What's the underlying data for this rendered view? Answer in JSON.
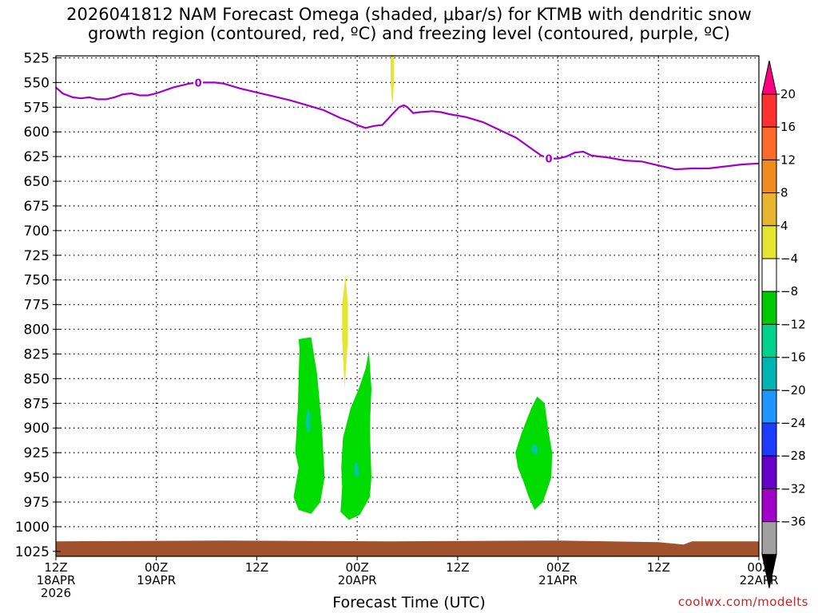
{
  "title": "2026041812 NAM Forecast Omega (shaded, μbar/s) for KTMB with dendritic snow\ngrowth region (contoured, red, ºC) and freezing level (contoured, purple, ºC)",
  "credit": "coolwx.com/modelts",
  "chart_data": {
    "type": "time-height cross section",
    "xlabel": "Forecast Time (UTC)",
    "ylim": [
      1030,
      523
    ],
    "y_ticks": [
      525,
      550,
      575,
      600,
      625,
      650,
      675,
      700,
      725,
      750,
      775,
      800,
      825,
      850,
      875,
      900,
      925,
      950,
      975,
      1000,
      1025
    ],
    "x_range_hours": [
      0,
      84
    ],
    "x_ticks": [
      {
        "hour": 0,
        "lines": [
          "12Z",
          "18APR",
          "2026"
        ]
      },
      {
        "hour": 12,
        "lines": [
          "00Z",
          "19APR"
        ]
      },
      {
        "hour": 24,
        "lines": [
          "12Z"
        ]
      },
      {
        "hour": 36,
        "lines": [
          "00Z",
          "20APR"
        ]
      },
      {
        "hour": 48,
        "lines": [
          "12Z"
        ]
      },
      {
        "hour": 60,
        "lines": [
          "00Z",
          "21APR"
        ]
      },
      {
        "hour": 72,
        "lines": [
          "12Z"
        ]
      },
      {
        "hour": 84,
        "lines": [
          "00Z",
          "22APR"
        ]
      }
    ],
    "grid": true,
    "colorbar": {
      "labels": [
        "20",
        "16",
        "12",
        "8",
        "4",
        "−4",
        "−8",
        "−12",
        "−16",
        "−20",
        "−24",
        "−28",
        "−32",
        "−36"
      ],
      "colors": [
        "#ff0080",
        "#ff3030",
        "#ff6a2a",
        "#ee8c1e",
        "#e6b42e",
        "#e6e632",
        "#ffffff",
        "#00c800",
        "#00d28c",
        "#00b4b4",
        "#1e96ff",
        "#1e3cff",
        "#6400c8",
        "#a000c8",
        "#a0a0a0",
        "#000000"
      ]
    },
    "freezing_level": {
      "color": "#a000c8",
      "label": "0",
      "points": [
        [
          0,
          555
        ],
        [
          0.8,
          561
        ],
        [
          2,
          565
        ],
        [
          3,
          566
        ],
        [
          4,
          565
        ],
        [
          5,
          567
        ],
        [
          6,
          567
        ],
        [
          7,
          565
        ],
        [
          8,
          562
        ],
        [
          9,
          561
        ],
        [
          10,
          563
        ],
        [
          11,
          563
        ],
        [
          12,
          561
        ],
        [
          14,
          555
        ],
        [
          16,
          551
        ],
        [
          17,
          550
        ],
        [
          19,
          550
        ],
        [
          20,
          551
        ],
        [
          22,
          556
        ],
        [
          24,
          560
        ],
        [
          26,
          564
        ],
        [
          28,
          568
        ],
        [
          30,
          573
        ],
        [
          32,
          578
        ],
        [
          34,
          586
        ],
        [
          35,
          589
        ],
        [
          36,
          593
        ],
        [
          37,
          596
        ],
        [
          38,
          594
        ],
        [
          39,
          593
        ],
        [
          40,
          584
        ],
        [
          41,
          575
        ],
        [
          41.6,
          573
        ],
        [
          42,
          575
        ],
        [
          42.7,
          581
        ],
        [
          43.5,
          580
        ],
        [
          45,
          579
        ],
        [
          46,
          580
        ],
        [
          47,
          582
        ],
        [
          49,
          585
        ],
        [
          51,
          590
        ],
        [
          53,
          598
        ],
        [
          55,
          606
        ],
        [
          57,
          618
        ],
        [
          58,
          624
        ],
        [
          59,
          627
        ],
        [
          60,
          627
        ],
        [
          61,
          625
        ],
        [
          62,
          621
        ],
        [
          63,
          620
        ],
        [
          64,
          624
        ],
        [
          66,
          626
        ],
        [
          68,
          629
        ],
        [
          70,
          630
        ],
        [
          71,
          632
        ],
        [
          72,
          634
        ],
        [
          73,
          636
        ],
        [
          74,
          638
        ],
        [
          76,
          637
        ],
        [
          78,
          637
        ],
        [
          80,
          635
        ],
        [
          82,
          633
        ],
        [
          84,
          632
        ]
      ]
    },
    "omega_regions": [
      {
        "name": "-4",
        "color": "#00dc00",
        "points": [
          [
            29,
            810
          ],
          [
            30.5,
            808
          ],
          [
            31.2,
            845
          ],
          [
            31.8,
            900
          ],
          [
            32.1,
            950
          ],
          [
            31.6,
            975
          ],
          [
            30.5,
            987
          ],
          [
            29,
            983
          ],
          [
            28.4,
            970
          ],
          [
            29,
            940
          ],
          [
            28.6,
            925
          ],
          [
            28.9,
            880
          ],
          [
            29,
            850
          ],
          [
            29.1,
            820
          ]
        ]
      },
      {
        "name": "-4",
        "color": "#00dc00",
        "points": [
          [
            37.4,
            822
          ],
          [
            37.7,
            860
          ],
          [
            37.5,
            900
          ],
          [
            37.7,
            950
          ],
          [
            37.5,
            970
          ],
          [
            36.3,
            988
          ],
          [
            35,
            993
          ],
          [
            34,
            985
          ],
          [
            34.2,
            960
          ],
          [
            34.1,
            940
          ],
          [
            34.3,
            910
          ],
          [
            35.2,
            880
          ],
          [
            36.2,
            860
          ],
          [
            37,
            840
          ]
        ]
      },
      {
        "name": "-4",
        "color": "#00dc00",
        "points": [
          [
            55.2,
            940
          ],
          [
            54.9,
            925
          ],
          [
            55.6,
            906
          ],
          [
            56.8,
            880
          ],
          [
            57.5,
            868
          ],
          [
            58.4,
            875
          ],
          [
            58.8,
            900
          ],
          [
            59.3,
            925
          ],
          [
            59.2,
            950
          ],
          [
            58.2,
            975
          ],
          [
            57.2,
            983
          ],
          [
            56.5,
            970
          ],
          [
            55.9,
            955
          ]
        ]
      },
      {
        "name": "-8",
        "color": "#00c8a0",
        "points": [
          [
            30.1,
            880
          ],
          [
            30.4,
            885
          ],
          [
            30.4,
            903
          ],
          [
            30.1,
            905
          ],
          [
            29.8,
            895
          ]
        ]
      },
      {
        "name": "-8",
        "color": "#00c8a0",
        "points": [
          [
            35.7,
            935
          ],
          [
            36.1,
            935
          ],
          [
            36.2,
            948
          ],
          [
            35.8,
            950
          ],
          [
            35.6,
            942
          ]
        ]
      },
      {
        "name": "-8",
        "color": "#00c8a0",
        "points": [
          [
            57,
            916
          ],
          [
            57.5,
            918
          ],
          [
            57.6,
            925
          ],
          [
            57.1,
            927
          ],
          [
            56.8,
            922
          ]
        ]
      },
      {
        "name": "+4",
        "color": "#e6e632",
        "points": [
          [
            40,
            522
          ],
          [
            40.4,
            522
          ],
          [
            40.4,
            550
          ],
          [
            40.2,
            575
          ],
          [
            40.0,
            550
          ]
        ]
      },
      {
        "name": "+4",
        "color": "#e6e632",
        "points": [
          [
            34.6,
            745
          ],
          [
            34.9,
            775
          ],
          [
            34.9,
            810
          ],
          [
            34.5,
            860
          ],
          [
            34.2,
            810
          ],
          [
            34.2,
            775
          ]
        ]
      }
    ],
    "ground": {
      "color": "#a0522d"
    }
  }
}
